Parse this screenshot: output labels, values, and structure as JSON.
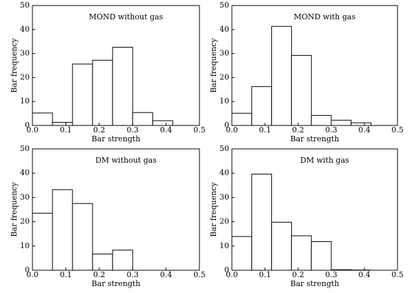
{
  "chart_data": [
    {
      "type": "histogram",
      "title": "MOND without gas",
      "x_label": "Bar strength",
      "y_label": "Bar frequency",
      "bins": [
        0,
        0.06,
        0.12,
        0.18,
        0.24,
        0.3,
        0.36,
        0.42
      ],
      "values": [
        5.2,
        1.3,
        25.6,
        27.2,
        32.6,
        5.4,
        2.0
      ],
      "color": "#ffffff",
      "xlim": [
        0,
        0.5
      ],
      "ylim": [
        0,
        50
      ],
      "xticks": [
        {
          "value": 0,
          "label": "0.0"
        },
        0.1,
        0.2,
        0.3,
        0.4,
        0.5
      ],
      "yticks": [
        0,
        10,
        20,
        30,
        40,
        50
      ]
    },
    {
      "type": "histogram",
      "title": "MOND with gas",
      "x_label": "Bar strength",
      "y_label": "Bar frequency",
      "bins": [
        0,
        0.06,
        0.12,
        0.18,
        0.24,
        0.3,
        0.36,
        0.42
      ],
      "values": [
        5.1,
        16.2,
        41.3,
        29.2,
        4.2,
        2.2,
        1.1
      ],
      "color": "#ffffff",
      "xlim": [
        0,
        0.5
      ],
      "ylim": [
        0,
        50
      ],
      "xticks": [
        {
          "value": 0,
          "label": "0.0"
        },
        0.1,
        0.2,
        0.3,
        0.4,
        0.5
      ],
      "yticks": [
        0,
        10,
        20,
        30,
        40,
        50
      ]
    },
    {
      "type": "histogram",
      "title": "DM without gas",
      "x_label": "Bar strength",
      "y_label": "Bar frequency",
      "bins": [
        0,
        0.06,
        0.12,
        0.18,
        0.24,
        0.3,
        0.36,
        0.42
      ],
      "values": [
        23.5,
        33.2,
        27.5,
        6.7,
        8.3,
        0,
        0
      ],
      "color": "#ffffff",
      "xlim": [
        0,
        0.5
      ],
      "ylim": [
        0,
        50
      ],
      "xticks": [
        {
          "value": 0,
          "label": "0.0"
        },
        0.1,
        0.2,
        0.3,
        0.4,
        0.5
      ],
      "yticks": [
        0,
        10,
        20,
        30,
        40,
        50
      ]
    },
    {
      "type": "histogram",
      "title": "DM with gas",
      "x_label": "Bar strength",
      "y_label": "Bar frequency",
      "bins": [
        0,
        0.06,
        0.12,
        0.18,
        0.24,
        0.3,
        0.36,
        0.42
      ],
      "values": [
        13.9,
        39.6,
        19.8,
        14.2,
        11.8,
        0.2,
        0.1
      ],
      "color": "#ffffff",
      "xlim": [
        0,
        0.5
      ],
      "ylim": [
        0,
        50
      ],
      "xticks": [
        {
          "value": 0,
          "label": "0.0"
        },
        0.1,
        0.2,
        0.3,
        0.4,
        0.5
      ],
      "yticks": [
        0,
        10,
        20,
        30,
        40,
        50
      ]
    }
  ]
}
